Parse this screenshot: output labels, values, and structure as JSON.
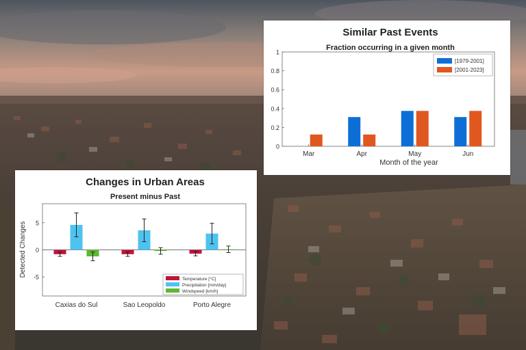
{
  "chart_data": [
    {
      "type": "bar",
      "title": "Similar Past Events",
      "subtitle": "Fraction occurring in a given month",
      "xlabel": "Month of the year",
      "ylabel": "",
      "ylim": [
        0,
        1
      ],
      "yticks": [
        "0",
        "0.2",
        "0.4",
        "0.6",
        "0.8",
        "1"
      ],
      "grid": false,
      "legend_position": "top-right",
      "categories": [
        "Mar",
        "Apr",
        "May",
        "Jun"
      ],
      "series": [
        {
          "name": "[1979-2001]",
          "color": "#0d6fd6",
          "values": [
            0.0,
            0.31,
            0.375,
            0.31
          ]
        },
        {
          "name": "[2001-2023]",
          "color": "#e0571f",
          "values": [
            0.125,
            0.125,
            0.375,
            0.375
          ]
        }
      ]
    },
    {
      "type": "bar",
      "title": "Changes in Urban Areas",
      "subtitle": "Present minus Past",
      "xlabel": "",
      "ylabel": "Detected Changes",
      "ylim": [
        -8.5,
        8.5
      ],
      "yticks": [
        "-5",
        "0",
        "5"
      ],
      "grid": false,
      "legend_position": "bottom-right",
      "categories": [
        "Caxias do Sul",
        "Sao Leopoldo",
        "Porto Alegre"
      ],
      "series": [
        {
          "name": "Temperature [°C]",
          "color": "#c0143c",
          "values": [
            -0.8,
            -0.8,
            -0.7
          ],
          "error": [
            0.4,
            0.4,
            0.4
          ]
        },
        {
          "name": "Precipitation [mm/day]",
          "color": "#4fc3f0",
          "values": [
            4.6,
            3.6,
            3.0
          ],
          "error": [
            2.2,
            2.1,
            1.9
          ]
        },
        {
          "name": "Windspeed [km/h]",
          "color": "#5fb832",
          "values": [
            -1.2,
            -0.2,
            0.1
          ],
          "error": [
            0.8,
            0.6,
            0.6
          ]
        }
      ]
    }
  ]
}
